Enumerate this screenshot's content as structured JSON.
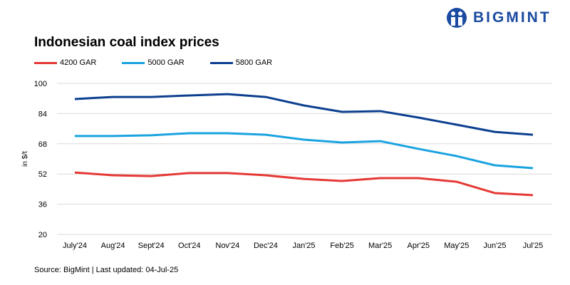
{
  "brand": {
    "name": "BIGMINT",
    "color": "#1a4ba0"
  },
  "chart_data": {
    "type": "line",
    "title": "Indonesian coal index prices",
    "xlabel": "",
    "ylabel": "in $/t",
    "ylim": [
      20,
      100
    ],
    "yticks": [
      20,
      36,
      52,
      68,
      84,
      100
    ],
    "grid": true,
    "legend_position": "top-left",
    "categories": [
      "July'24",
      "Aug'24",
      "Sept'24",
      "Oct'24",
      "Nov'24",
      "Dec'24",
      "Jan'25",
      "Feb'25",
      "Mar'25",
      "Apr'25",
      "May'25",
      "Jun'25",
      "Jul'25"
    ],
    "series": [
      {
        "name": "4200 GAR",
        "color": "#e53935",
        "values": [
          52.8,
          51.3,
          50.9,
          52.5,
          52.5,
          51.3,
          49.4,
          48.3,
          49.8,
          49.8,
          47.9,
          41.9,
          40.8
        ]
      },
      {
        "name": "5000 GAR",
        "color": "#1aa3e0",
        "values": [
          72.1,
          72.1,
          72.5,
          73.6,
          73.6,
          72.8,
          70.2,
          68.7,
          69.4,
          65.3,
          61.5,
          56.6,
          55.1
        ]
      },
      {
        "name": "5800 GAR",
        "color": "#0d3f8f",
        "values": [
          91.7,
          92.8,
          92.8,
          93.6,
          94.3,
          92.8,
          88.3,
          84.9,
          85.3,
          81.9,
          78.1,
          74.3,
          72.8
        ]
      }
    ],
    "source": "Source: BigMint | Last updated: 04-Jul-25"
  }
}
